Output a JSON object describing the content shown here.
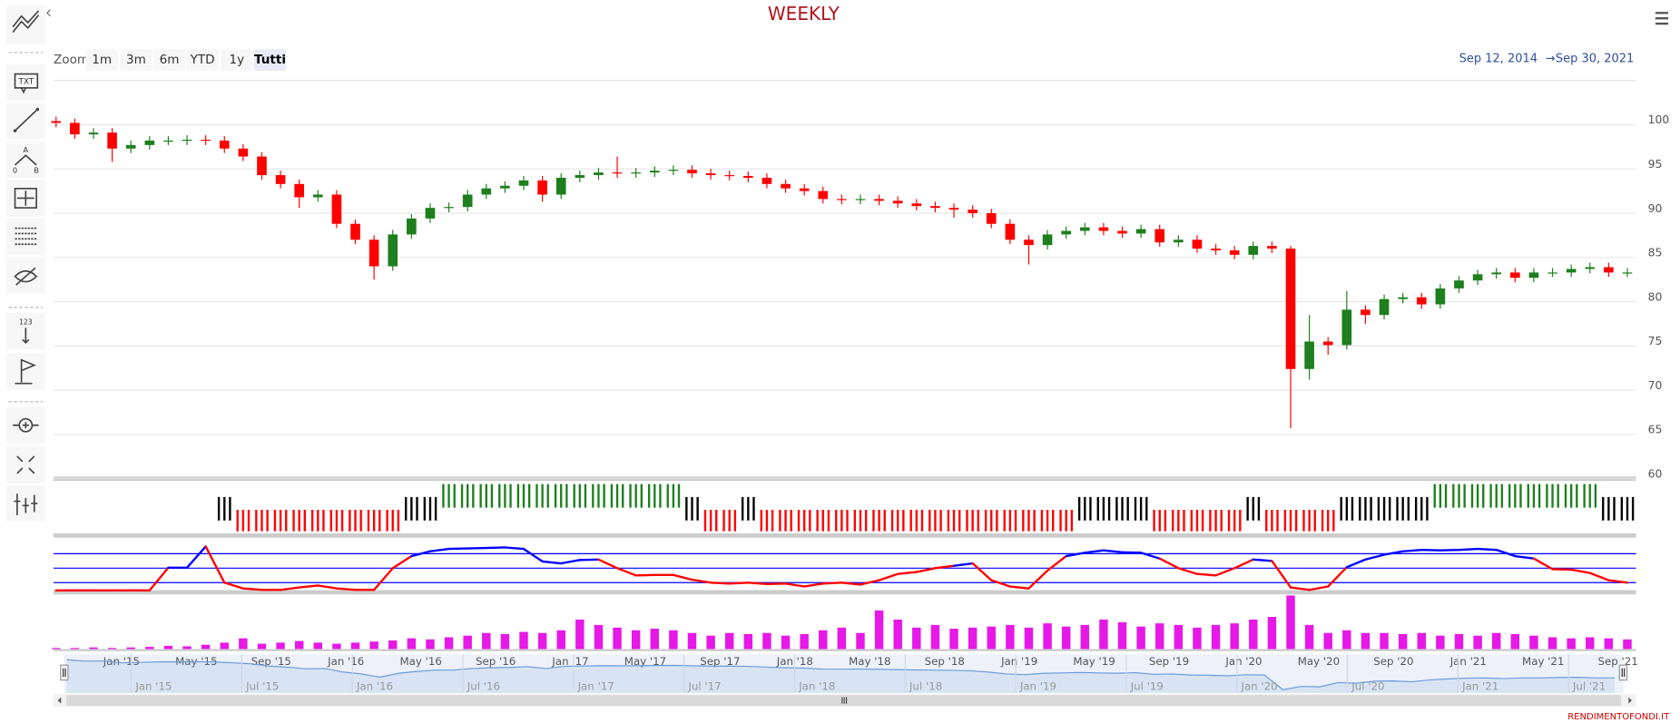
{
  "toolbar": {
    "text_tool": "TXT",
    "counter_tool": "123",
    "angle_a": "A",
    "angle_0": "0",
    "angle_b": "B"
  },
  "chart_data": {
    "type": "candlestick",
    "title": "WEEKLY",
    "range_selector": {
      "label": "Zoom",
      "buttons": [
        "1m",
        "3m",
        "6m",
        "YTD",
        "1y",
        "Tutti"
      ],
      "selected": 5
    },
    "range_display": {
      "from": "Sep 12, 2014",
      "arrow": "→",
      "to": "Sep 30, 2021"
    },
    "credits": "RENDIMENTOFONDI.IT",
    "x": [
      "2014-09",
      "2014-10",
      "2014-11",
      "2014-12",
      "2015-01",
      "2015-02",
      "2015-03",
      "2015-04",
      "2015-05",
      "2015-06",
      "2015-07",
      "2015-08",
      "2015-09",
      "2015-10",
      "2015-11",
      "2015-12",
      "2016-01",
      "2016-02",
      "2016-03",
      "2016-04",
      "2016-05",
      "2016-06",
      "2016-07",
      "2016-08",
      "2016-09",
      "2016-10",
      "2016-11",
      "2016-12",
      "2017-01",
      "2017-02",
      "2017-03",
      "2017-04",
      "2017-05",
      "2017-06",
      "2017-07",
      "2017-08",
      "2017-09",
      "2017-10",
      "2017-11",
      "2017-12",
      "2018-01",
      "2018-02",
      "2018-03",
      "2018-04",
      "2018-05",
      "2018-06",
      "2018-07",
      "2018-08",
      "2018-09",
      "2018-10",
      "2018-11",
      "2018-12",
      "2019-01",
      "2019-02",
      "2019-03",
      "2019-04",
      "2019-05",
      "2019-06",
      "2019-07",
      "2019-08",
      "2019-09",
      "2019-10",
      "2019-11",
      "2019-12",
      "2020-01",
      "2020-02",
      "2020-03",
      "2020-04",
      "2020-05",
      "2020-06",
      "2020-07",
      "2020-08",
      "2020-09",
      "2020-10",
      "2020-11",
      "2020-12",
      "2021-01",
      "2021-02",
      "2021-03",
      "2021-04",
      "2021-05",
      "2021-06",
      "2021-07",
      "2021-08",
      "2021-09"
    ],
    "xlim": [
      "2014-09-12",
      "2021-09-30"
    ],
    "xticks": [
      {
        "value": "2015-01",
        "label": "Jan '15"
      },
      {
        "value": "2015-05",
        "label": "May '15"
      },
      {
        "value": "2015-09",
        "label": "Sep '15"
      },
      {
        "value": "2016-01",
        "label": "Jan '16"
      },
      {
        "value": "2016-05",
        "label": "May '16"
      },
      {
        "value": "2016-09",
        "label": "Sep '16"
      },
      {
        "value": "2017-01",
        "label": "Jan '17"
      },
      {
        "value": "2017-05",
        "label": "May '17"
      },
      {
        "value": "2017-09",
        "label": "Sep '17"
      },
      {
        "value": "2018-01",
        "label": "Jan '18"
      },
      {
        "value": "2018-05",
        "label": "May '18"
      },
      {
        "value": "2018-09",
        "label": "Sep '18"
      },
      {
        "value": "2019-01",
        "label": "Jan '19"
      },
      {
        "value": "2019-05",
        "label": "May '19"
      },
      {
        "value": "2019-09",
        "label": "Sep '19"
      },
      {
        "value": "2020-01",
        "label": "Jan '20"
      },
      {
        "value": "2020-05",
        "label": "May '20"
      },
      {
        "value": "2020-09",
        "label": "Sep '20"
      },
      {
        "value": "2021-01",
        "label": "Jan '21"
      },
      {
        "value": "2021-05",
        "label": "May '21"
      },
      {
        "value": "2021-09",
        "label": "Sep '21"
      }
    ],
    "navigator_xticks": [
      {
        "value": "2015-01",
        "label": "Jan '15"
      },
      {
        "value": "2015-07",
        "label": "Jul '15"
      },
      {
        "value": "2016-01",
        "label": "Jan '16"
      },
      {
        "value": "2016-07",
        "label": "Jul '16"
      },
      {
        "value": "2017-01",
        "label": "Jan '17"
      },
      {
        "value": "2017-07",
        "label": "Jul '17"
      },
      {
        "value": "2018-01",
        "label": "Jan '18"
      },
      {
        "value": "2018-07",
        "label": "Jul '18"
      },
      {
        "value": "2019-01",
        "label": "Jan '19"
      },
      {
        "value": "2019-07",
        "label": "Jul '19"
      },
      {
        "value": "2020-01",
        "label": "Jan '20"
      },
      {
        "value": "2020-07",
        "label": "Jul '20"
      },
      {
        "value": "2021-01",
        "label": "Jan '21"
      },
      {
        "value": "2021-07",
        "label": "Jul '21"
      }
    ],
    "ylim": [
      60,
      105
    ],
    "yticks": [
      60,
      65,
      70,
      75,
      80,
      85,
      90,
      95,
      100
    ],
    "grid": true,
    "up_color": "#1d7f1d",
    "down_color": "#ff0000",
    "open": [
      100.4,
      100.2,
      98.9,
      99.1,
      97.3,
      97.7,
      98.2,
      98.2,
      98.3,
      98.2,
      97.3,
      96.4,
      94.3,
      93.3,
      91.8,
      92.1,
      88.8,
      87.0,
      84.0,
      87.6,
      89.4,
      90.6,
      90.7,
      92.1,
      92.8,
      93.1,
      93.7,
      92.1,
      94.0,
      94.3,
      94.6,
      94.5,
      94.6,
      94.8,
      94.9,
      94.5,
      94.3,
      94.2,
      94.0,
      93.3,
      92.8,
      92.5,
      91.6,
      91.5,
      91.6,
      91.4,
      91.1,
      90.8,
      90.6,
      90.4,
      90.0,
      88.8,
      87.0,
      86.4,
      87.6,
      88.0,
      88.4,
      88.0,
      87.7,
      88.2,
      86.7,
      87.0,
      86.0,
      85.8,
      85.3,
      86.3,
      86.0,
      72.4,
      75.5,
      75.1,
      79.1,
      78.5,
      80.3,
      80.5,
      79.7,
      81.5,
      82.4,
      83.1,
      83.3,
      82.7,
      83.3,
      83.3,
      83.7,
      83.9,
      83.3
    ],
    "high": [
      100.9,
      100.7,
      99.6,
      99.6,
      98.2,
      98.7,
      98.7,
      98.8,
      98.8,
      98.7,
      97.8,
      96.9,
      94.8,
      93.8,
      92.6,
      92.6,
      89.3,
      87.5,
      88.1,
      89.9,
      91.1,
      91.2,
      92.6,
      93.3,
      93.6,
      94.2,
      94.2,
      94.5,
      94.8,
      95.1,
      96.4,
      95.1,
      95.3,
      95.4,
      95.4,
      95.0,
      94.8,
      94.7,
      94.5,
      93.8,
      93.3,
      93.0,
      92.1,
      92.1,
      92.1,
      91.9,
      91.6,
      91.3,
      91.1,
      90.9,
      90.5,
      89.3,
      87.5,
      88.1,
      88.5,
      88.9,
      88.9,
      88.5,
      88.7,
      88.7,
      87.5,
      87.5,
      86.5,
      86.3,
      86.8,
      86.8,
      86.3,
      78.5,
      76.0,
      81.2,
      79.6,
      80.8,
      81.0,
      81.0,
      82.0,
      82.9,
      83.6,
      83.8,
      83.8,
      83.8,
      83.8,
      84.2,
      84.4,
      84.4,
      83.8
    ],
    "low": [
      99.7,
      98.4,
      98.4,
      95.8,
      96.8,
      97.2,
      97.7,
      97.7,
      97.7,
      96.8,
      95.9,
      93.8,
      92.8,
      90.6,
      91.3,
      88.3,
      86.5,
      82.5,
      83.5,
      87.1,
      88.9,
      90.1,
      90.2,
      91.6,
      92.3,
      92.6,
      91.3,
      91.6,
      93.5,
      93.8,
      94.0,
      94.0,
      94.1,
      94.3,
      94.0,
      93.8,
      93.7,
      93.5,
      92.8,
      92.3,
      92.0,
      91.1,
      91.0,
      91.0,
      90.9,
      90.6,
      90.3,
      90.1,
      89.5,
      89.5,
      88.3,
      86.5,
      84.2,
      85.9,
      87.1,
      87.5,
      87.5,
      87.2,
      87.2,
      86.2,
      86.2,
      85.5,
      85.3,
      84.8,
      84.8,
      85.5,
      65.7,
      71.2,
      74.0,
      74.6,
      77.5,
      78.0,
      79.8,
      79.2,
      79.2,
      81.0,
      81.9,
      82.6,
      82.2,
      82.2,
      82.8,
      82.8,
      83.2,
      82.8,
      82.8
    ],
    "close": [
      100.2,
      98.9,
      99.1,
      97.3,
      97.7,
      98.2,
      98.2,
      98.3,
      98.2,
      97.3,
      96.4,
      94.3,
      93.3,
      91.8,
      92.1,
      88.8,
      87.0,
      84.0,
      87.6,
      89.4,
      90.6,
      90.7,
      92.1,
      92.8,
      93.1,
      93.7,
      92.1,
      94.0,
      94.3,
      94.6,
      94.5,
      94.6,
      94.8,
      94.9,
      94.5,
      94.3,
      94.2,
      94.0,
      93.3,
      92.8,
      92.5,
      91.6,
      91.5,
      91.6,
      91.4,
      91.1,
      90.8,
      90.6,
      90.4,
      90.0,
      88.8,
      87.0,
      86.4,
      87.6,
      88.0,
      88.4,
      88.0,
      87.7,
      88.2,
      86.7,
      87.0,
      86.0,
      85.8,
      85.3,
      86.3,
      86.0,
      72.4,
      75.5,
      75.1,
      79.1,
      78.5,
      80.3,
      80.5,
      79.7,
      81.5,
      82.4,
      83.1,
      83.3,
      82.7,
      83.3,
      83.3,
      83.7,
      83.9,
      83.3,
      83.3
    ],
    "signal": {
      "values": [
        null,
        null,
        null,
        null,
        null,
        null,
        null,
        null,
        null,
        0,
        -1,
        -1,
        -1,
        -1,
        -1,
        -1,
        -1,
        -1,
        -1,
        0,
        0,
        1,
        1,
        1,
        1,
        1,
        1,
        1,
        1,
        1,
        1,
        1,
        1,
        1,
        0,
        -1,
        -1,
        0,
        -1,
        -1,
        -1,
        -1,
        -1,
        -1,
        -1,
        -1,
        -1,
        -1,
        -1,
        -1,
        -1,
        -1,
        -1,
        -1,
        -1,
        0,
        0,
        0,
        0,
        -1,
        -1,
        -1,
        -1,
        -1,
        0,
        -1,
        -1,
        -1,
        -1,
        0,
        0,
        0,
        0,
        0,
        1,
        1,
        1,
        1,
        1,
        1,
        1,
        1,
        1,
        0,
        0
      ],
      "colors": {
        "1": "#1d7f1d",
        "-1": "#ff0000",
        "0": "#000000"
      }
    },
    "oscillator": {
      "values": [
        4,
        4,
        4,
        4,
        4,
        4,
        51,
        51,
        95,
        20,
        8,
        5,
        5,
        10,
        14,
        8,
        5,
        5,
        50,
        75,
        85,
        90,
        91,
        92,
        93,
        90,
        64,
        60,
        67,
        68,
        50,
        35,
        36,
        36,
        26,
        20,
        18,
        20,
        17,
        18,
        12,
        18,
        20,
        16,
        25,
        38,
        42,
        50,
        55,
        60,
        25,
        12,
        8,
        45,
        75,
        82,
        87,
        83,
        82,
        70,
        50,
        38,
        35,
        50,
        68,
        65,
        10,
        5,
        12,
        52,
        68,
        78,
        85,
        88,
        87,
        88,
        90,
        88,
        75,
        70,
        48,
        47,
        40,
        25,
        20
      ],
      "trend": [
        0,
        0,
        0,
        0,
        0,
        0,
        1,
        1,
        1,
        0,
        0,
        0,
        0,
        0,
        0,
        0,
        0,
        0,
        0,
        1,
        1,
        1,
        1,
        1,
        1,
        1,
        1,
        1,
        1,
        1,
        0,
        0,
        0,
        0,
        0,
        0,
        0,
        0,
        0,
        0,
        0,
        0,
        0,
        0,
        0,
        0,
        0,
        0,
        1,
        1,
        0,
        0,
        0,
        0,
        1,
        1,
        1,
        1,
        1,
        1,
        0,
        0,
        0,
        0,
        1,
        1,
        0,
        0,
        0,
        1,
        1,
        1,
        1,
        1,
        1,
        1,
        1,
        1,
        1,
        1,
        0,
        0,
        0,
        0,
        0
      ],
      "up_color": "#0000ff",
      "down_color": "#ff0000",
      "levels": [
        80,
        50,
        20
      ],
      "level_color": "#0000ff",
      "ylim": [
        0,
        100
      ]
    },
    "volume": {
      "values": [
        2,
        2,
        3,
        2,
        3,
        4,
        6,
        5,
        8,
        12,
        20,
        10,
        12,
        15,
        12,
        10,
        12,
        14,
        16,
        20,
        18,
        22,
        25,
        30,
        28,
        32,
        30,
        35,
        55,
        45,
        40,
        35,
        38,
        35,
        30,
        25,
        30,
        28,
        30,
        25,
        28,
        35,
        40,
        30,
        72,
        55,
        40,
        45,
        38,
        40,
        42,
        45,
        40,
        48,
        42,
        45,
        55,
        50,
        42,
        48,
        45,
        40,
        45,
        48,
        55,
        60,
        100,
        45,
        30,
        35,
        30,
        30,
        28,
        30,
        25,
        28,
        25,
        30,
        28,
        25,
        22,
        20,
        22,
        20,
        18
      ],
      "color": "#e619e6"
    },
    "navigator": {
      "color": "#6d9bd8"
    }
  }
}
